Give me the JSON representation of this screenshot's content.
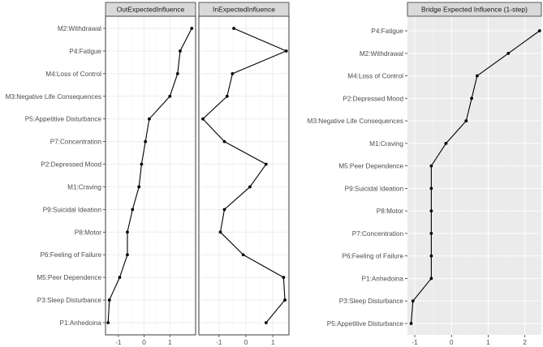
{
  "chart_data": [
    {
      "type": "line",
      "subtype": "dot-line faceted",
      "theme": "white background, light grey grid, grey facet strips",
      "facets": [
        {
          "title": "OutExpectedInfluence",
          "categories": [
            "M2:Withdrawal",
            "P4:Fatigue",
            "M4:Loss of Control",
            "M3:Negative Life Consequences",
            "P5:Appetitive Disturbance",
            "P7:Concentration",
            "P2:Depressed Mood",
            "M1:Craving",
            "P9:Suicidal Ideation",
            "P8:Motor",
            "P6:Feeling of Failure",
            "M5:Peer Dependence",
            "P3:Sleep Disturbance",
            "P1:Anhedoina"
          ],
          "values": [
            1.85,
            1.4,
            1.3,
            1.0,
            0.2,
            0.05,
            -0.1,
            -0.2,
            -0.45,
            -0.65,
            -0.65,
            -0.95,
            -1.35,
            -1.4
          ],
          "xlim": [
            -1.5,
            2.0
          ],
          "xticks": [
            -1,
            0,
            1
          ]
        },
        {
          "title": "InExpectedInfluence",
          "categories": [
            "M2:Withdrawal",
            "P4:Fatigue",
            "M4:Loss of Control",
            "M3:Negative Life Consequences",
            "P5:Appetitive Disturbance",
            "P7:Concentration",
            "P2:Depressed Mood",
            "M1:Craving",
            "P9:Suicidal Ideation",
            "P8:Motor",
            "P6:Feeling of Failure",
            "M5:Peer Dependence",
            "P3:Sleep Disturbance",
            "P1:Anhedoina"
          ],
          "values": [
            -0.45,
            1.5,
            -0.5,
            -0.7,
            -1.6,
            -0.8,
            0.75,
            0.15,
            -0.8,
            -0.95,
            -0.1,
            1.4,
            1.45,
            0.75
          ],
          "xlim": [
            -1.75,
            1.6
          ],
          "xticks": [
            -1,
            0,
            1
          ]
        }
      ],
      "grid": true,
      "legend": "none"
    },
    {
      "type": "line",
      "subtype": "dot-line",
      "theme": "grey panel background, white grid",
      "title": "Bridge Expected Influence (1-step)",
      "categories": [
        "P4:Fatigue",
        "M2:Withdrawal",
        "M4:Loss of Control",
        "P2:Depressed Mood",
        "M3:Negative Life Consequences",
        "M1:Craving",
        "M5:Peer Dependence",
        "P9:Suicidal Ideation",
        "P8:Motor",
        "P7:Concentration",
        "P6:Feeling of Failure",
        "P1:Anhedoina",
        "P3:Sleep Disturbance",
        "P5:Appetitive Disturbance"
      ],
      "values": [
        2.4,
        1.55,
        0.7,
        0.55,
        0.4,
        -0.15,
        -0.55,
        -0.55,
        -0.55,
        -0.55,
        -0.55,
        -0.55,
        -1.05,
        -1.1
      ],
      "xlim": [
        -1.2,
        2.45
      ],
      "xticks": [
        -1,
        0,
        1,
        2
      ],
      "grid": true,
      "legend": "none"
    }
  ],
  "colors": {
    "strip_fill": "#d9d9d9",
    "strip_border": "#333333",
    "panel_border": "#333333",
    "grid_light": "#ebebeb",
    "grid_minor_light": "#f4f4f4",
    "grey_panel": "#ebebeb",
    "grid_white": "#ffffff",
    "line": "#000000",
    "text": "#4d4d4d"
  }
}
